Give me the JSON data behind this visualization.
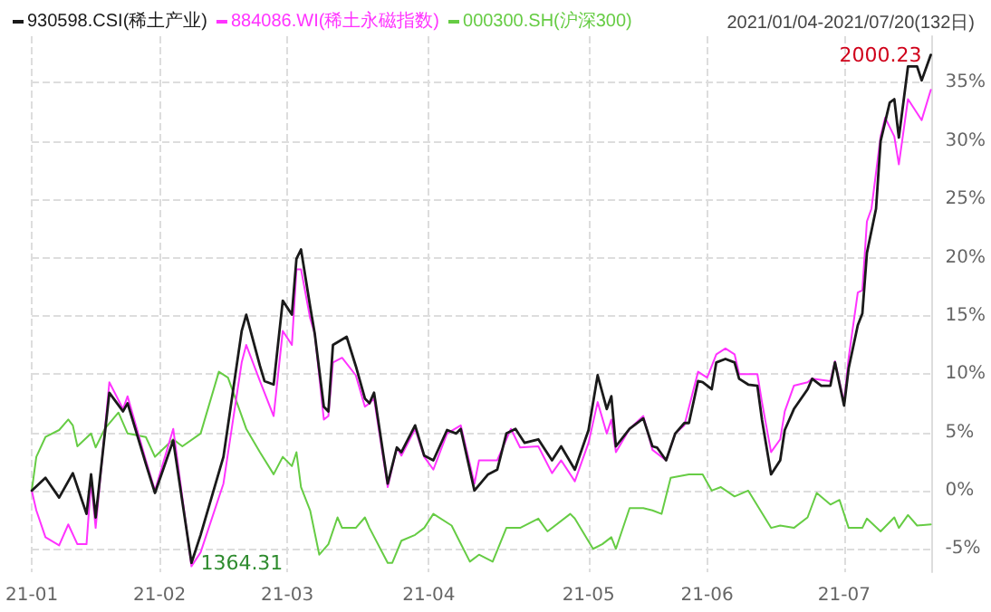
{
  "chart_data": {
    "type": "line",
    "title": "2021/01/04-2021/07/20(132日)",
    "xlim": [
      "2021-01-04",
      "2021-07-20"
    ],
    "xticks": [
      {
        "value": "2021-01-04",
        "label": "21-01"
      },
      {
        "value": "2021-02-01",
        "label": "21-02"
      },
      {
        "value": "2021-03-01",
        "label": "21-03"
      },
      {
        "value": "2021-04-01",
        "label": "21-04"
      },
      {
        "value": "2021-05-06",
        "label": "21-05"
      },
      {
        "value": "2021-06-01",
        "label": "21-06"
      },
      {
        "value": "2021-07-01",
        "label": "21-07"
      }
    ],
    "ylim": [
      -7,
      39
    ],
    "yticks": [
      {
        "value": -5,
        "label": "-5%"
      },
      {
        "value": 0,
        "label": "0%"
      },
      {
        "value": 5,
        "label": "5%"
      },
      {
        "value": 10,
        "label": "10%"
      },
      {
        "value": 15,
        "label": "15%"
      },
      {
        "value": 20,
        "label": "20%"
      },
      {
        "value": 25,
        "label": "25%"
      },
      {
        "value": 30,
        "label": "30%"
      },
      {
        "value": 35,
        "label": "35%"
      }
    ],
    "grid": true,
    "legend": "top left",
    "marker": "none",
    "line_style": "solid",
    "annotations": [
      {
        "text": "2000.23",
        "x": "2021-07-20",
        "y": 37.4
      },
      {
        "text": "1364.31",
        "x": "2021-02-08",
        "y": -6.2
      }
    ],
    "series": [
      {
        "name": "930598.CSI(稀土产业)",
        "color": "#1a1a1a",
        "x": [
          "2021-01-04",
          "2021-01-07",
          "2021-01-10",
          "2021-01-13",
          "2021-01-16",
          "2021-01-17",
          "2021-01-18",
          "2021-01-21",
          "2021-01-24",
          "2021-01-25",
          "2021-01-29",
          "2021-01-31",
          "2021-02-04",
          "2021-02-08",
          "2021-02-10",
          "2021-02-15",
          "2021-02-19",
          "2021-02-20",
          "2021-02-23",
          "2021-02-24",
          "2021-02-26",
          "2021-02-28",
          "2021-03-02",
          "2021-03-03",
          "2021-03-04",
          "2021-03-06",
          "2021-03-07",
          "2021-03-09",
          "2021-03-10",
          "2021-03-11",
          "2021-03-14",
          "2021-03-16",
          "2021-03-18",
          "2021-03-19",
          "2021-03-20",
          "2021-03-23",
          "2021-03-25",
          "2021-03-26",
          "2021-03-29",
          "2021-03-31",
          "2021-04-02",
          "2021-04-05",
          "2021-04-07",
          "2021-04-08",
          "2021-04-11",
          "2021-04-14",
          "2021-04-16",
          "2021-04-18",
          "2021-04-20",
          "2021-04-22",
          "2021-04-25",
          "2021-04-28",
          "2021-04-30",
          "2021-05-03",
          "2021-05-06",
          "2021-05-08",
          "2021-05-10",
          "2021-05-11",
          "2021-05-12",
          "2021-05-15",
          "2021-05-18",
          "2021-05-20",
          "2021-05-21",
          "2021-05-23",
          "2021-05-25",
          "2021-05-27",
          "2021-05-28",
          "2021-05-30",
          "2021-05-31",
          "2021-06-02",
          "2021-06-03",
          "2021-06-05",
          "2021-06-07",
          "2021-06-08",
          "2021-06-10",
          "2021-06-12",
          "2021-06-13",
          "2021-06-15",
          "2021-06-17",
          "2021-06-18",
          "2021-06-20",
          "2021-06-23",
          "2021-06-24",
          "2021-06-26",
          "2021-06-28",
          "2021-06-29",
          "2021-07-01",
          "2021-07-02",
          "2021-07-04",
          "2021-07-05",
          "2021-07-06",
          "2021-07-08",
          "2021-07-09",
          "2021-07-11",
          "2021-07-12",
          "2021-07-13",
          "2021-07-15",
          "2021-07-17",
          "2021-07-18",
          "2021-07-20"
        ],
        "values": [
          0.0,
          1.1,
          -0.6,
          1.5,
          -2.0,
          1.4,
          -2.3,
          8.4,
          6.8,
          7.5,
          2.3,
          -0.2,
          4.3,
          -6.2,
          -3.8,
          2.9,
          13.7,
          15.1,
          10.7,
          9.4,
          9.1,
          16.3,
          15.1,
          19.9,
          20.7,
          15.8,
          13.5,
          7.2,
          6.8,
          12.5,
          13.2,
          10.7,
          7.9,
          7.5,
          8.4,
          0.6,
          3.7,
          3.3,
          5.6,
          3.0,
          2.6,
          5.2,
          4.9,
          5.3,
          0.0,
          1.4,
          1.8,
          4.9,
          5.3,
          4.1,
          4.4,
          2.6,
          3.8,
          1.8,
          5.2,
          9.9,
          7.0,
          8.1,
          3.8,
          5.3,
          6.2,
          3.8,
          3.7,
          2.6,
          4.9,
          5.8,
          5.8,
          9.4,
          9.3,
          8.7,
          11.0,
          11.3,
          11.0,
          9.6,
          9.1,
          9.0,
          6.1,
          1.4,
          2.6,
          5.2,
          7.0,
          8.7,
          9.6,
          9.0,
          9.0,
          11.0,
          7.3,
          10.5,
          14.2,
          15.2,
          20.4,
          24.2,
          30.0,
          33.3,
          33.6,
          30.3,
          36.4,
          36.4,
          35.2,
          37.4
        ]
      },
      {
        "name": "884086.WI(稀土永磁指数)",
        "color": "#ff33ff",
        "x": [
          "2021-01-04",
          "2021-01-05",
          "2021-01-07",
          "2021-01-10",
          "2021-01-12",
          "2021-01-14",
          "2021-01-16",
          "2021-01-17",
          "2021-01-18",
          "2021-01-21",
          "2021-01-24",
          "2021-01-25",
          "2021-01-29",
          "2021-01-31",
          "2021-02-04",
          "2021-02-08",
          "2021-02-10",
          "2021-02-15",
          "2021-02-19",
          "2021-02-20",
          "2021-02-23",
          "2021-02-26",
          "2021-02-28",
          "2021-03-02",
          "2021-03-03",
          "2021-03-04",
          "2021-03-06",
          "2021-03-07",
          "2021-03-09",
          "2021-03-10",
          "2021-03-11",
          "2021-03-13",
          "2021-03-16",
          "2021-03-18",
          "2021-03-19",
          "2021-03-20",
          "2021-03-23",
          "2021-03-25",
          "2021-03-26",
          "2021-03-29",
          "2021-03-31",
          "2021-04-02",
          "2021-04-05",
          "2021-04-08",
          "2021-04-11",
          "2021-04-12",
          "2021-04-16",
          "2021-04-19",
          "2021-04-21",
          "2021-04-25",
          "2021-04-28",
          "2021-04-30",
          "2021-05-03",
          "2021-05-06",
          "2021-05-08",
          "2021-05-10",
          "2021-05-11",
          "2021-05-12",
          "2021-05-15",
          "2021-05-18",
          "2021-05-20",
          "2021-05-23",
          "2021-05-25",
          "2021-05-27",
          "2021-05-30",
          "2021-06-01",
          "2021-06-03",
          "2021-06-05",
          "2021-06-07",
          "2021-06-08",
          "2021-06-12",
          "2021-06-13",
          "2021-06-15",
          "2021-06-17",
          "2021-06-18",
          "2021-06-20",
          "2021-06-23",
          "2021-06-24",
          "2021-06-28",
          "2021-06-29",
          "2021-07-01",
          "2021-07-02",
          "2021-07-04",
          "2021-07-05",
          "2021-07-06",
          "2021-07-07",
          "2021-07-09",
          "2021-07-10",
          "2021-07-12",
          "2021-07-13",
          "2021-07-15",
          "2021-07-17",
          "2021-07-18",
          "2021-07-20"
        ],
        "values": [
          0.0,
          -1.7,
          -4.0,
          -4.7,
          -2.9,
          -4.6,
          -4.6,
          0.8,
          -3.2,
          9.3,
          7.0,
          8.1,
          2.6,
          0.0,
          5.3,
          -6.5,
          -5.3,
          0.6,
          11.0,
          12.5,
          9.4,
          6.4,
          13.7,
          12.5,
          19.0,
          19.0,
          14.8,
          13.5,
          6.1,
          6.4,
          11.0,
          11.4,
          9.9,
          7.2,
          7.5,
          7.9,
          0.3,
          3.7,
          3.0,
          5.3,
          2.9,
          1.8,
          4.9,
          5.6,
          0.6,
          2.6,
          2.6,
          5.3,
          3.7,
          3.8,
          1.5,
          2.6,
          0.8,
          4.1,
          7.6,
          4.9,
          6.1,
          3.3,
          5.3,
          6.4,
          3.5,
          2.6,
          4.9,
          5.6,
          10.2,
          9.7,
          11.7,
          12.2,
          11.7,
          10.0,
          10.0,
          7.6,
          3.3,
          4.4,
          6.8,
          9.0,
          9.3,
          9.6,
          9.4,
          11.1,
          7.6,
          11.4,
          17.0,
          17.2,
          23.1,
          24.2,
          30.4,
          32.0,
          30.4,
          28.0,
          33.6,
          32.4,
          31.8,
          34.4
        ]
      },
      {
        "name": "000300.SH(沪深300)",
        "color": "#66cc44",
        "x": [
          "2021-01-04",
          "2021-01-05",
          "2021-01-07",
          "2021-01-10",
          "2021-01-12",
          "2021-01-13",
          "2021-01-14",
          "2021-01-17",
          "2021-01-18",
          "2021-01-20",
          "2021-01-23",
          "2021-01-25",
          "2021-01-29",
          "2021-01-31",
          "2021-02-04",
          "2021-02-06",
          "2021-02-10",
          "2021-02-14",
          "2021-02-16",
          "2021-02-20",
          "2021-02-23",
          "2021-02-26",
          "2021-02-28",
          "2021-03-02",
          "2021-03-03",
          "2021-03-04",
          "2021-03-06",
          "2021-03-08",
          "2021-03-10",
          "2021-03-12",
          "2021-03-13",
          "2021-03-16",
          "2021-03-18",
          "2021-03-19",
          "2021-03-23",
          "2021-03-24",
          "2021-03-26",
          "2021-03-29",
          "2021-03-31",
          "2021-04-02",
          "2021-04-06",
          "2021-04-10",
          "2021-04-12",
          "2021-04-15",
          "2021-04-18",
          "2021-04-21",
          "2021-04-25",
          "2021-04-27",
          "2021-05-02",
          "2021-05-03",
          "2021-05-07",
          "2021-05-09",
          "2021-05-11",
          "2021-05-12",
          "2021-05-15",
          "2021-05-18",
          "2021-05-20",
          "2021-05-22",
          "2021-05-24",
          "2021-05-28",
          "2021-05-31",
          "2021-06-02",
          "2021-06-04",
          "2021-06-07",
          "2021-06-10",
          "2021-06-15",
          "2021-06-17",
          "2021-06-20",
          "2021-06-23",
          "2021-06-25",
          "2021-06-28",
          "2021-06-30",
          "2021-07-02",
          "2021-07-05",
          "2021-07-06",
          "2021-07-09",
          "2021-07-12",
          "2021-07-13",
          "2021-07-15",
          "2021-07-17",
          "2021-07-20"
        ],
        "values": [
          0.0,
          2.9,
          4.6,
          5.2,
          6.1,
          5.6,
          3.8,
          4.9,
          3.7,
          5.3,
          6.7,
          4.9,
          4.6,
          2.9,
          4.4,
          3.8,
          4.9,
          10.2,
          9.7,
          5.3,
          3.3,
          1.4,
          2.9,
          2.1,
          3.3,
          0.3,
          -1.7,
          -5.5,
          -4.6,
          -2.3,
          -3.2,
          -3.2,
          -2.3,
          -3.2,
          -6.2,
          -6.2,
          -4.3,
          -3.8,
          -3.2,
          -2.0,
          -3.0,
          -6.1,
          -5.5,
          -6.1,
          -3.2,
          -3.2,
          -2.4,
          -3.5,
          -2.0,
          -2.4,
          -5.0,
          -4.6,
          -4.0,
          -5.0,
          -1.5,
          -1.5,
          -1.7,
          -2.0,
          1.1,
          1.4,
          1.4,
          0.0,
          0.3,
          -0.5,
          0.0,
          -3.2,
          -3.0,
          -3.2,
          -2.3,
          -0.2,
          -1.2,
          -0.8,
          -3.2,
          -3.2,
          -2.4,
          -3.5,
          -2.3,
          -3.2,
          -2.1,
          -3.0,
          -2.9
        ]
      }
    ]
  }
}
